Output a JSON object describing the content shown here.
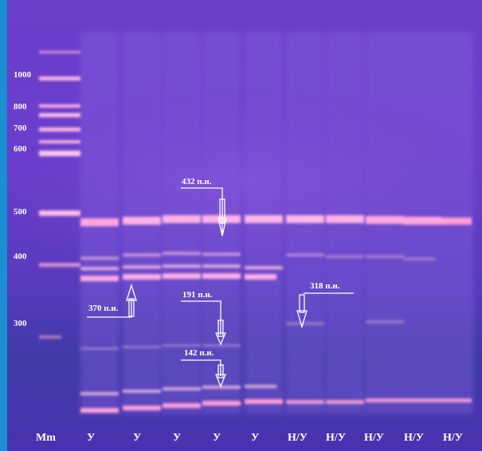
{
  "ladder_labels": [
    "1000",
    "800",
    "700",
    "600",
    "500",
    "400",
    "300"
  ],
  "lane_labels": [
    "Mm",
    "У",
    "У",
    "У",
    "У",
    "У",
    "Н/У",
    "Н/У",
    "Н/У",
    "Н/У",
    "Н/У"
  ],
  "annotations": {
    "bp432": "432 п.н.",
    "bp370": "370 п.н.",
    "bp191": "191 п.н.",
    "bp318": "318 п.н.",
    "bp142": "142 п.н."
  },
  "colors": {
    "frame": "#1b8fd1",
    "gel": "#6a3fc9",
    "band": "#f2a6d6",
    "annotation": "#ffffff"
  }
}
